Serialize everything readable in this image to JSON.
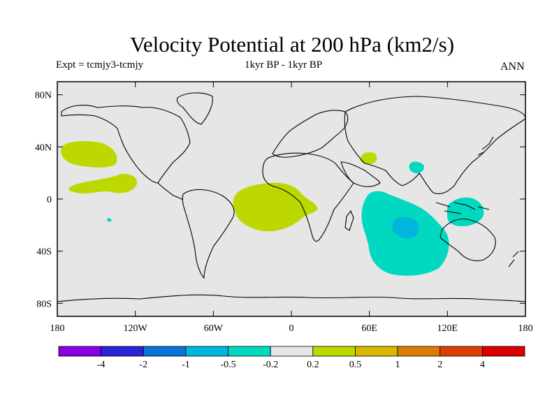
{
  "title": "Velocity Potential at 200 hPa (km2/s)",
  "subtitle_left": "Expt = tcmjy3-tcmjy",
  "subtitle_center": "1kyr BP - 1kyr BP",
  "subtitle_right": "ANN",
  "chart_data": {
    "type": "heatmap",
    "projection": "cylindrical-equidistant",
    "x_ticks": [
      "180",
      "120W",
      "60W",
      "0",
      "60E",
      "120E",
      "180"
    ],
    "y_ticks": [
      "80N",
      "40N",
      "0",
      "40S",
      "80S"
    ],
    "xlim": [
      -180,
      180
    ],
    "ylim": [
      -90,
      90
    ],
    "colorbar": {
      "labels": [
        "-4",
        "-2",
        "-1",
        "-0.5",
        "-0.2",
        "0.2",
        "0.5",
        "1",
        "2",
        "4"
      ],
      "colors": [
        "#8a00e0",
        "#2a24d6",
        "#0a74d8",
        "#00b6dc",
        "#00d8c0",
        "#e6e6e6",
        "#bcd800",
        "#d8b800",
        "#de7c00",
        "#dc4000",
        "#d80000"
      ]
    },
    "regions": [
      {
        "level": "0.2 to 0.5",
        "color": "#bcd800",
        "area": "North Pacific near 35N, 180-140W"
      },
      {
        "level": "0.2 to 0.5",
        "color": "#bcd800",
        "area": "Tropical East Pacific near 10N, 170-120W"
      },
      {
        "level": "0.2 to 0.5",
        "color": "#bcd800",
        "area": "Tropical Atlantic / Africa, 10N-25S, 45W-20E"
      },
      {
        "level": "0.2 to 0.5",
        "color": "#bcd800",
        "area": "Arabia near 30N, 55E"
      },
      {
        "level": "-0.5 to -0.2",
        "color": "#00d8c0",
        "area": "Indian Ocean, 0-55S, 55E-120E"
      },
      {
        "level": "-0.5 to -0.2",
        "color": "#00d8c0",
        "area": "Indonesia / Australia near 15S, 120E-145E"
      },
      {
        "level": "-0.5 to -0.2",
        "color": "#00d8c0",
        "area": "Bay of Bengal near 25N, 95E"
      },
      {
        "level": "-1 to -0.5",
        "color": "#00b6dc",
        "area": "South Indian Ocean near 20S, 85E"
      }
    ]
  }
}
